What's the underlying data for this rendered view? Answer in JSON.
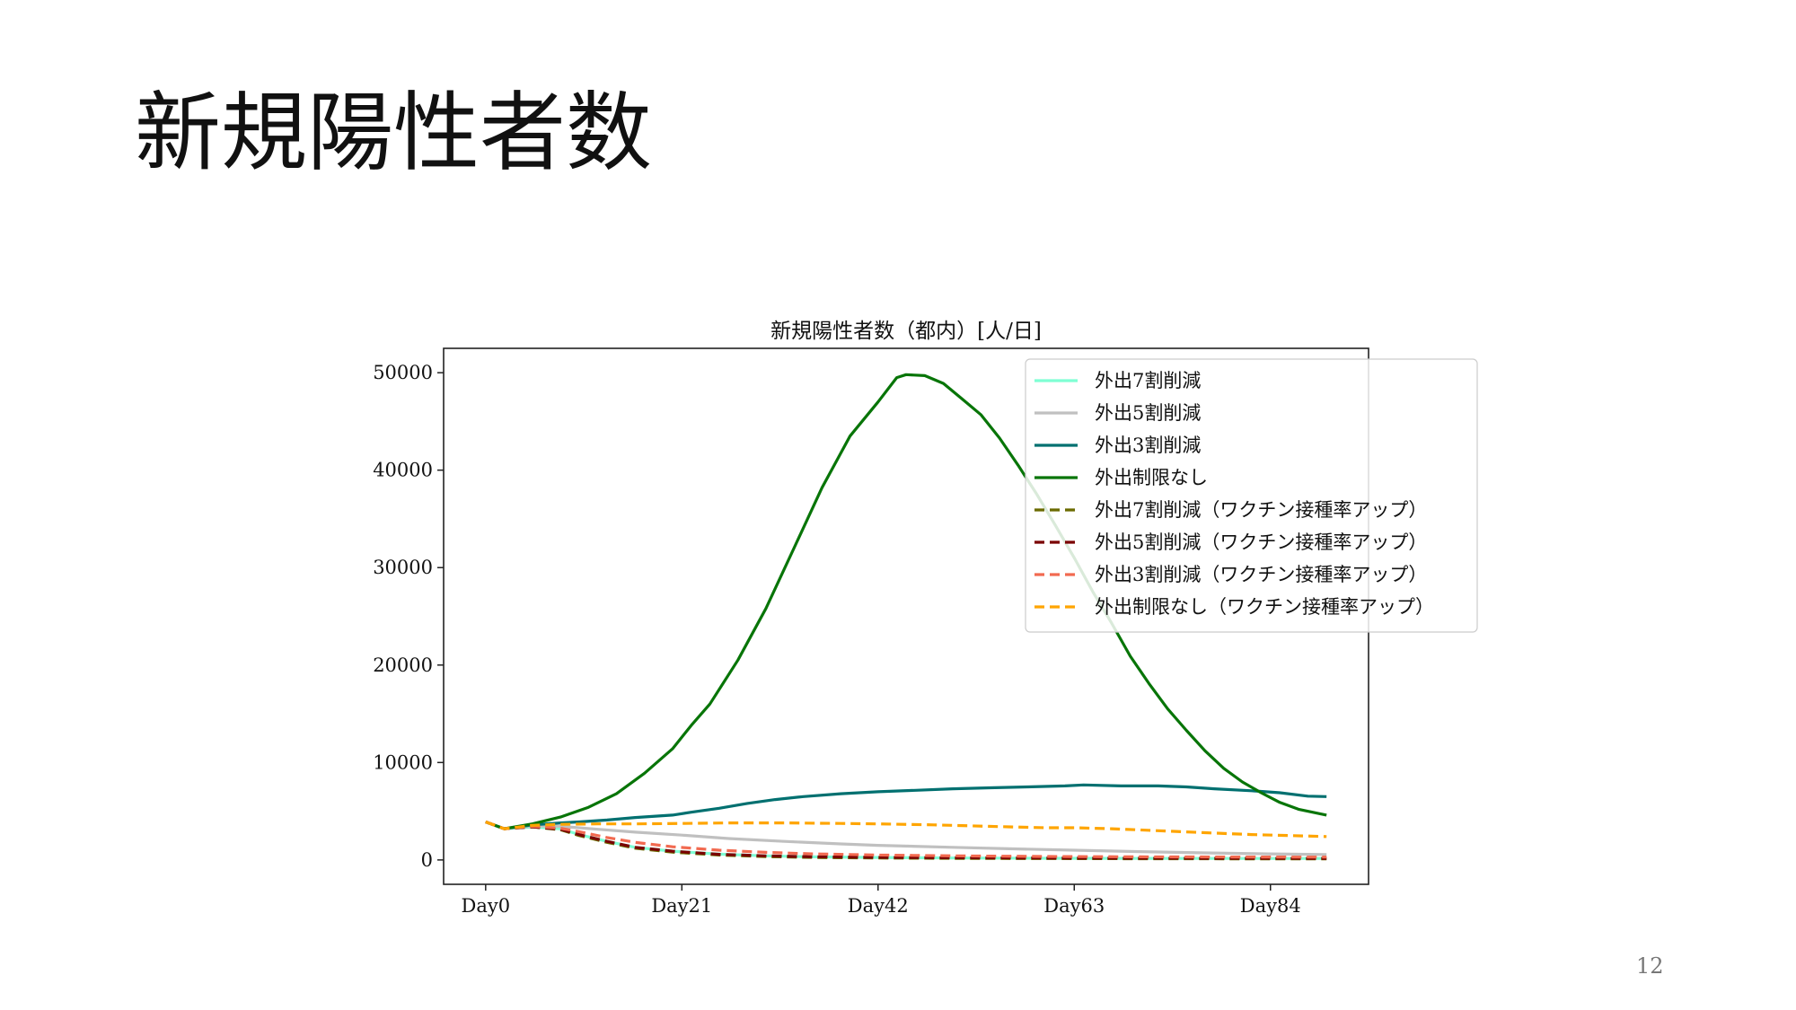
{
  "slide": {
    "title": "新規陽性者数",
    "page_number": "12"
  },
  "chart_data": {
    "type": "line",
    "title": "新規陽性者数（都内）[人/日]",
    "xlabel": "",
    "ylabel": "",
    "xlim": [
      -4.5,
      94.5
    ],
    "ylim": [
      -2500,
      52500
    ],
    "x_ticks": [
      0,
      21,
      42,
      63,
      84
    ],
    "x_tick_labels": [
      "Day0",
      "Day21",
      "Day42",
      "Day63",
      "Day84"
    ],
    "y_ticks": [
      0,
      10000,
      20000,
      30000,
      40000,
      50000
    ],
    "y_tick_labels": [
      "0",
      "10000",
      "20000",
      "30000",
      "40000",
      "50000"
    ],
    "grid": false,
    "legend_position": "top-right",
    "series": [
      {
        "name": "外出7割削減",
        "color": "#7fffd4",
        "dash": false,
        "points": [
          [
            0,
            3900
          ],
          [
            2,
            3200
          ],
          [
            5,
            3400
          ],
          [
            8,
            3200
          ],
          [
            10,
            2600
          ],
          [
            13,
            1900
          ],
          [
            16,
            1300
          ],
          [
            20,
            900
          ],
          [
            25,
            600
          ],
          [
            30,
            420
          ],
          [
            35,
            320
          ],
          [
            42,
            250
          ],
          [
            50,
            200
          ],
          [
            60,
            170
          ],
          [
            70,
            160
          ],
          [
            80,
            150
          ],
          [
            90,
            150
          ]
        ]
      },
      {
        "name": "外出5割削減",
        "color": "#c0c0c0",
        "dash": false,
        "points": [
          [
            0,
            3900
          ],
          [
            2,
            3200
          ],
          [
            5,
            3500
          ],
          [
            8,
            3450
          ],
          [
            12,
            3150
          ],
          [
            16,
            2850
          ],
          [
            21,
            2550
          ],
          [
            26,
            2200
          ],
          [
            32,
            1900
          ],
          [
            38,
            1650
          ],
          [
            42,
            1500
          ],
          [
            50,
            1300
          ],
          [
            56,
            1150
          ],
          [
            63,
            1000
          ],
          [
            70,
            850
          ],
          [
            77,
            720
          ],
          [
            84,
            620
          ],
          [
            90,
            560
          ]
        ]
      },
      {
        "name": "外出3割削減",
        "color": "#007070",
        "dash": false,
        "points": [
          [
            0,
            3900
          ],
          [
            2,
            3200
          ],
          [
            5,
            3600
          ],
          [
            8,
            3800
          ],
          [
            10,
            3900
          ],
          [
            13,
            4100
          ],
          [
            16,
            4350
          ],
          [
            20,
            4600
          ],
          [
            22,
            4900
          ],
          [
            25,
            5300
          ],
          [
            28,
            5800
          ],
          [
            31,
            6200
          ],
          [
            34,
            6500
          ],
          [
            38,
            6800
          ],
          [
            42,
            7000
          ],
          [
            46,
            7150
          ],
          [
            50,
            7300
          ],
          [
            54,
            7400
          ],
          [
            58,
            7500
          ],
          [
            62,
            7600
          ],
          [
            64,
            7700
          ],
          [
            68,
            7600
          ],
          [
            72,
            7600
          ],
          [
            75,
            7500
          ],
          [
            78,
            7300
          ],
          [
            82,
            7100
          ],
          [
            85,
            6900
          ],
          [
            88,
            6550
          ],
          [
            90,
            6500
          ]
        ]
      },
      {
        "name": "外出制限なし",
        "color": "#087508",
        "dash": false,
        "points": [
          [
            0,
            3900
          ],
          [
            2,
            3200
          ],
          [
            5,
            3700
          ],
          [
            8,
            4400
          ],
          [
            11,
            5400
          ],
          [
            14,
            6800
          ],
          [
            17,
            8900
          ],
          [
            20,
            11400
          ],
          [
            22,
            13800
          ],
          [
            24,
            16000
          ],
          [
            27,
            20500
          ],
          [
            30,
            25800
          ],
          [
            33,
            32000
          ],
          [
            36,
            38200
          ],
          [
            39,
            43500
          ],
          [
            42,
            47000
          ],
          [
            44,
            49500
          ],
          [
            45,
            49800
          ],
          [
            47,
            49700
          ],
          [
            49,
            48900
          ],
          [
            51,
            47300
          ],
          [
            53,
            45700
          ],
          [
            55,
            43300
          ],
          [
            57,
            40500
          ],
          [
            59,
            37500
          ],
          [
            61,
            34300
          ],
          [
            63,
            31000
          ],
          [
            65,
            27500
          ],
          [
            67,
            24300
          ],
          [
            69,
            20900
          ],
          [
            71,
            18100
          ],
          [
            73,
            15500
          ],
          [
            75,
            13300
          ],
          [
            77,
            11200
          ],
          [
            79,
            9400
          ],
          [
            81,
            8000
          ],
          [
            83,
            6900
          ],
          [
            85,
            5900
          ],
          [
            87,
            5200
          ],
          [
            90,
            4600
          ]
        ]
      },
      {
        "name": "外出7割削減（ワクチン接種率アップ）",
        "color": "#6b6b00",
        "dash": true,
        "points": [
          [
            0,
            3900
          ],
          [
            2,
            3200
          ],
          [
            5,
            3400
          ],
          [
            8,
            3100
          ],
          [
            10,
            2500
          ],
          [
            13,
            1800
          ],
          [
            16,
            1200
          ],
          [
            20,
            800
          ],
          [
            25,
            500
          ],
          [
            30,
            350
          ],
          [
            35,
            250
          ],
          [
            42,
            200
          ],
          [
            50,
            160
          ],
          [
            60,
            140
          ],
          [
            70,
            130
          ],
          [
            80,
            120
          ],
          [
            90,
            120
          ]
        ]
      },
      {
        "name": "外出5割削減（ワクチン接種率アップ）",
        "color": "#7a0000",
        "dash": true,
        "points": [
          [
            0,
            3900
          ],
          [
            2,
            3200
          ],
          [
            5,
            3400
          ],
          [
            8,
            3150
          ],
          [
            10,
            2600
          ],
          [
            13,
            1900
          ],
          [
            16,
            1300
          ],
          [
            20,
            900
          ],
          [
            25,
            580
          ],
          [
            30,
            420
          ],
          [
            35,
            330
          ],
          [
            42,
            270
          ],
          [
            50,
            230
          ],
          [
            60,
            200
          ],
          [
            70,
            180
          ],
          [
            80,
            170
          ],
          [
            90,
            160
          ]
        ]
      },
      {
        "name": "外出3割削減（ワクチン接種率アップ）",
        "color": "#f26a50",
        "dash": true,
        "points": [
          [
            0,
            3900
          ],
          [
            2,
            3200
          ],
          [
            5,
            3450
          ],
          [
            8,
            3250
          ],
          [
            10,
            2900
          ],
          [
            13,
            2300
          ],
          [
            16,
            1800
          ],
          [
            20,
            1350
          ],
          [
            25,
            1000
          ],
          [
            30,
            780
          ],
          [
            35,
            620
          ],
          [
            42,
            500
          ],
          [
            50,
            420
          ],
          [
            60,
            360
          ],
          [
            70,
            320
          ],
          [
            80,
            300
          ],
          [
            90,
            290
          ]
        ]
      },
      {
        "name": "外出制限なし（ワクチン接種率アップ）",
        "color": "#ffa500",
        "dash": true,
        "points": [
          [
            0,
            3900
          ],
          [
            2,
            3200
          ],
          [
            5,
            3550
          ],
          [
            8,
            3650
          ],
          [
            12,
            3700
          ],
          [
            16,
            3700
          ],
          [
            21,
            3750
          ],
          [
            26,
            3800
          ],
          [
            32,
            3800
          ],
          [
            38,
            3750
          ],
          [
            42,
            3700
          ],
          [
            48,
            3600
          ],
          [
            52,
            3500
          ],
          [
            56,
            3400
          ],
          [
            60,
            3300
          ],
          [
            63,
            3300
          ],
          [
            67,
            3200
          ],
          [
            72,
            3000
          ],
          [
            77,
            2800
          ],
          [
            82,
            2600
          ],
          [
            86,
            2500
          ],
          [
            90,
            2400
          ]
        ]
      }
    ]
  }
}
